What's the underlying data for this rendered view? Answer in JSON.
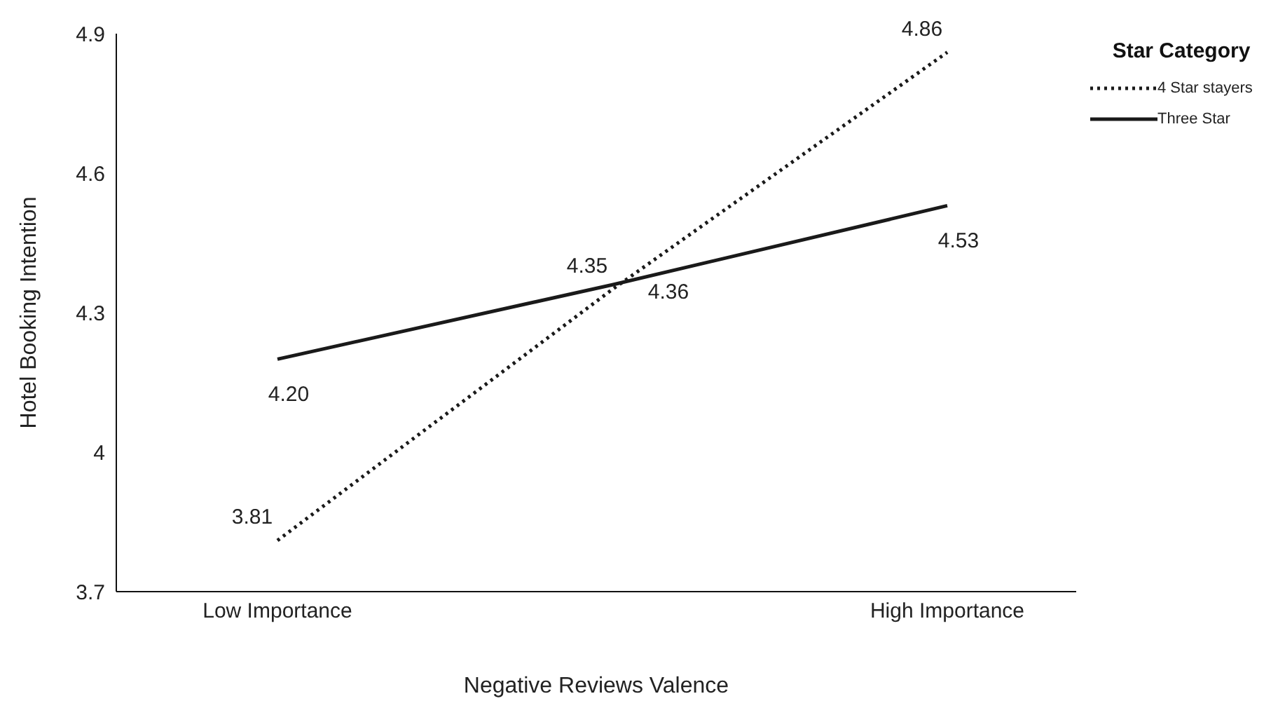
{
  "chart_data": {
    "type": "line",
    "xlabel": "Negative Reviews Valence",
    "ylabel": "Hotel Booking Intention",
    "legend_title": "Star Category",
    "categories": [
      "Low Importance",
      null,
      "High Importance"
    ],
    "series": [
      {
        "name": "4 Star stayers",
        "color": "#1a1a1a",
        "line_style": "dotted",
        "values": [
          3.81,
          4.35,
          4.86
        ],
        "value_labels": [
          "3.81",
          "4.35",
          "4.86"
        ]
      },
      {
        "name": "Three Star",
        "color": "#1a1a1a",
        "line_style": "solid",
        "values": [
          4.2,
          4.36,
          4.53
        ],
        "value_labels": [
          "4.20",
          "4.36",
          "4.53"
        ]
      }
    ],
    "ylim": [
      3.7,
      4.9
    ],
    "yticks": [
      3.7,
      4,
      4.3,
      4.6,
      4.9
    ],
    "grid": false,
    "legend": "top right",
    "marker": "none"
  }
}
